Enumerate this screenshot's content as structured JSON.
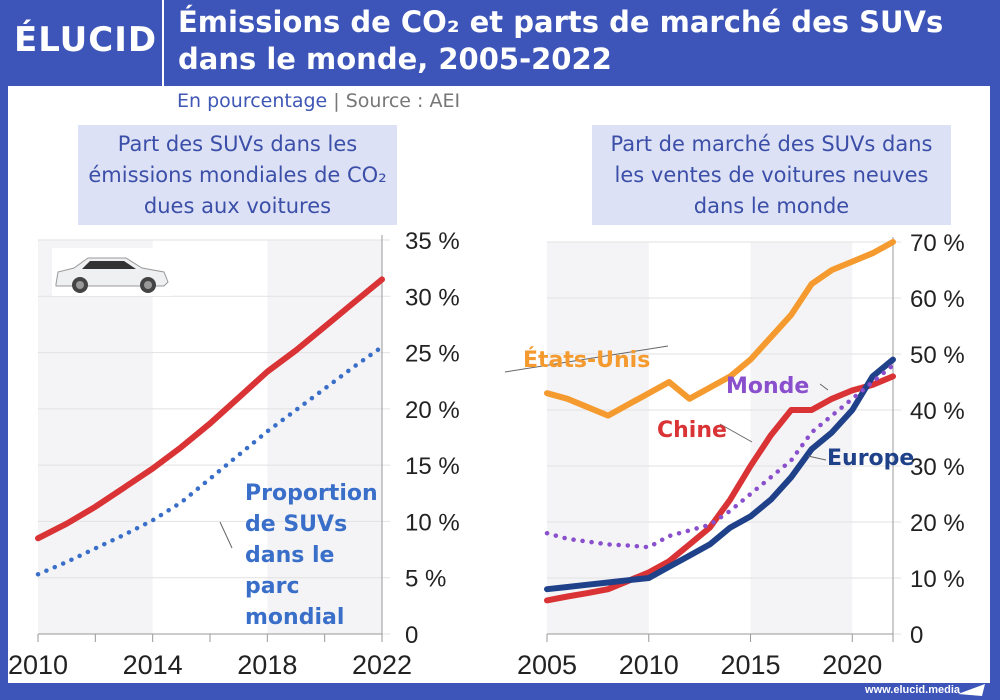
{
  "header": {
    "logo": "ÉLUCID",
    "title_line1": "Émissions de CO₂ et parts de marché des SUVs",
    "title_line2": "dans le monde, 2005-2022",
    "subtitle_unit": "En pourcentage",
    "subtitle_sep": "|",
    "subtitle_source": "Source : AEI"
  },
  "footer": {
    "url": "www.elucid.media"
  },
  "colors": {
    "frame": "#3d55b8",
    "red": "#d93335",
    "blue_dotted": "#3a6fc9",
    "orange": "#f59a2e",
    "navy": "#1f4189",
    "purple": "#8a4fcc"
  },
  "chart_data": [
    {
      "type": "line",
      "title": "Part des SUVs dans les émissions mondiales de CO₂ dues aux voitures",
      "x": [
        2010,
        2011,
        2012,
        2013,
        2014,
        2015,
        2016,
        2017,
        2018,
        2019,
        2020,
        2021,
        2022
      ],
      "xticks": [
        "2010",
        "2014",
        "2018",
        "2022"
      ],
      "yticks": [
        "0",
        "5 %",
        "10 %",
        "15 %",
        "20 %",
        "25 %",
        "30 %",
        "35 %"
      ],
      "ylim": [
        0,
        35
      ],
      "series": [
        {
          "key": "emissions",
          "values": [
            8.5,
            9.8,
            11.3,
            13,
            14.7,
            16.6,
            18.7,
            21,
            23.3,
            25.2,
            27.3,
            29.4,
            31.5
          ],
          "color": "#d93335",
          "style": "solid"
        },
        {
          "name": "Proportion de SUVs dans le parc mondial",
          "values": [
            5.3,
            6.4,
            7.6,
            8.8,
            10.1,
            11.7,
            13.8,
            15.9,
            18,
            19.9,
            21.8,
            23.7,
            25.5
          ],
          "color": "#3a6fc9",
          "style": "dotted"
        }
      ],
      "grid": true
    },
    {
      "type": "line",
      "title": "Part de marché des SUVs dans les ventes de voitures neuves dans le monde",
      "x": [
        2005,
        2006,
        2007,
        2008,
        2009,
        2010,
        2011,
        2012,
        2013,
        2014,
        2015,
        2016,
        2017,
        2018,
        2019,
        2020,
        2021,
        2022
      ],
      "xticks": [
        "2005",
        "2010",
        "2015",
        "2020"
      ],
      "yticks": [
        "0",
        "10 %",
        "20 %",
        "30 %",
        "40 %",
        "50 %",
        "60 %",
        "70 %"
      ],
      "ylim": [
        0,
        70
      ],
      "series": [
        {
          "name": "États-Unis",
          "values": [
            43,
            42,
            40.5,
            39,
            41,
            43,
            45,
            42,
            44,
            46,
            49,
            53,
            57,
            62.5,
            65,
            66.5,
            68,
            70
          ],
          "color": "#f59a2e",
          "style": "solid"
        },
        {
          "name": "Chine",
          "values": [
            6,
            6.7,
            7.3,
            8,
            9.5,
            11,
            13,
            16,
            19,
            24,
            30,
            35.5,
            40,
            40,
            42,
            43.5,
            44.5,
            46
          ],
          "color": "#d93335",
          "style": "solid"
        },
        {
          "name": "Europe",
          "values": [
            8,
            8.4,
            8.8,
            9.2,
            9.6,
            10,
            12,
            14,
            16,
            19,
            21,
            24,
            28,
            33,
            36,
            40,
            46,
            49
          ],
          "color": "#1f4189",
          "style": "solid"
        },
        {
          "name": "Monde",
          "values": [
            18,
            17,
            16.5,
            16,
            15.8,
            15.5,
            17.5,
            18.5,
            19.5,
            22,
            25,
            28,
            31,
            36,
            39,
            42,
            45,
            48
          ],
          "color": "#8a4fcc",
          "style": "dotted"
        }
      ],
      "grid": true
    }
  ]
}
